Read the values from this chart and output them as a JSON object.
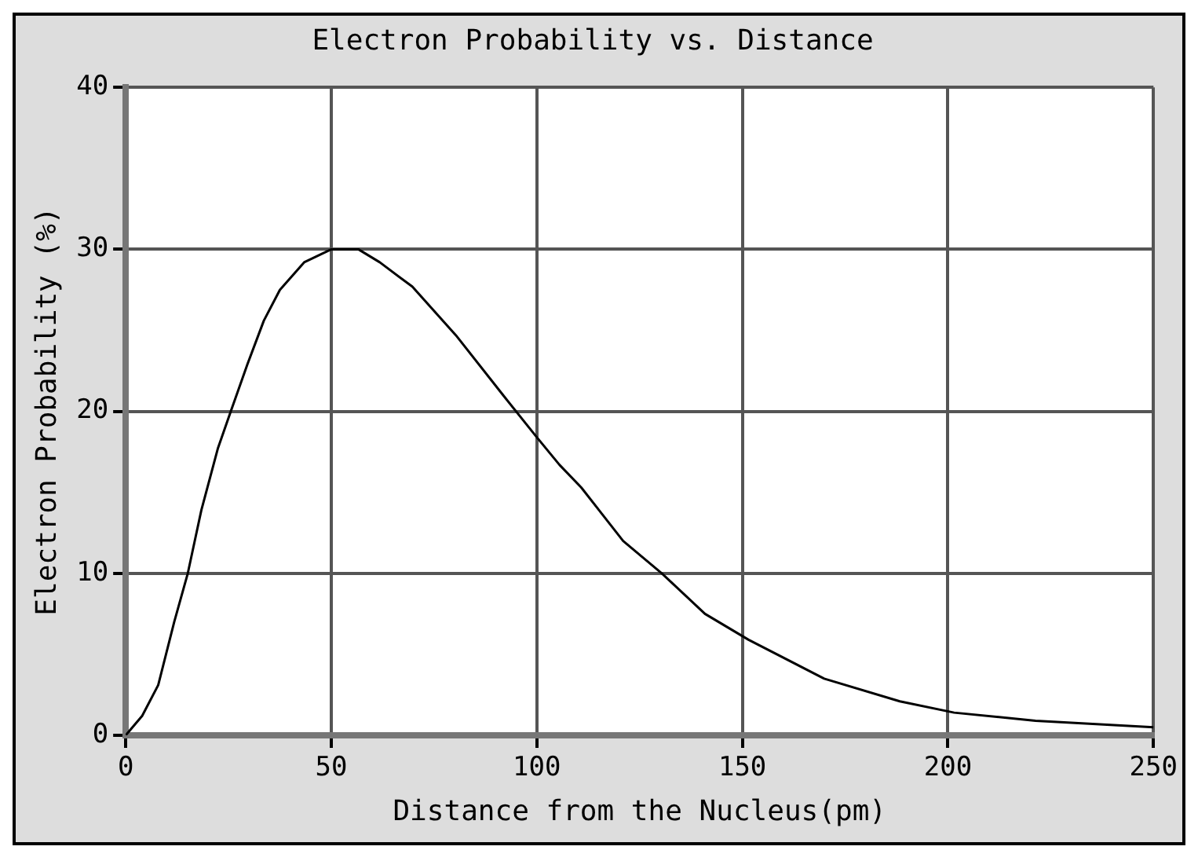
{
  "chart_data": {
    "type": "line",
    "title": "Electron Probability vs. Distance",
    "xlabel": "Distance from the Nucleus(pm)",
    "ylabel": "Electron Probability (%)",
    "series": [
      {
        "color": "#000000",
        "x": [
          0,
          4,
          7.9,
          11.8,
          15.1,
          18.4,
          22.4,
          25.7,
          29.6,
          33.6,
          37.5,
          43.4,
          50,
          56.6,
          61.8,
          69.7,
          80.3,
          92.1,
          100,
          105.5,
          110.8,
          121,
          130.4,
          140.9,
          151.5,
          169.9,
          188.3,
          201.5,
          221.3,
          250
        ],
        "values": [
          0,
          1.2,
          3.1,
          7,
          10,
          13.9,
          17.7,
          20.1,
          22.9,
          25.6,
          27.5,
          29.2,
          30,
          30,
          29.2,
          27.7,
          24.7,
          20.9,
          18.4,
          16.7,
          15.3,
          12,
          10,
          7.5,
          5.9,
          3.5,
          2.1,
          1.4,
          0.9,
          0.5
        ]
      }
    ],
    "xlim": [
      0,
      250
    ],
    "xticks": [
      0,
      50,
      100,
      150,
      200,
      250
    ],
    "ylim": [
      0,
      40
    ],
    "yticks": [
      0,
      10,
      20,
      30,
      40
    ],
    "grid": true,
    "marker": "none",
    "line_style": "solid"
  }
}
